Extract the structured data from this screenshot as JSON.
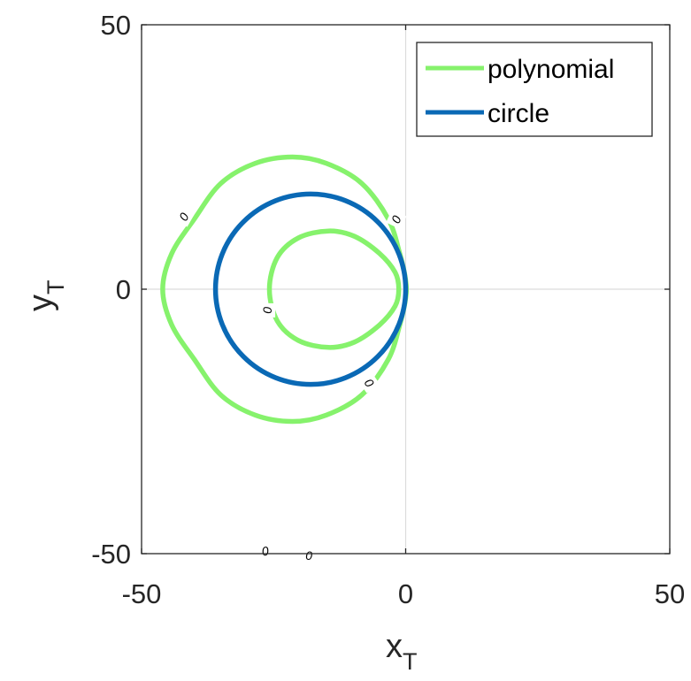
{
  "chart_data": {
    "type": "line",
    "title": "",
    "xlabel": {
      "main": "x",
      "sub": "T"
    },
    "ylabel": {
      "main": "y",
      "sub": "T"
    },
    "xlim": [
      -50,
      50
    ],
    "ylim": [
      -50,
      50
    ],
    "xticks": [
      "-50",
      "0",
      "50"
    ],
    "yticks": [
      "50",
      "0",
      "-50"
    ],
    "xtick_values": [
      -50,
      0,
      50
    ],
    "ytick_values": [
      50,
      0,
      -50
    ],
    "grid": "zero-lines",
    "legend_position": "top-right",
    "series": [
      {
        "name": "polynomial",
        "color": "#86f26c",
        "curves": [
          {
            "shape": "outer-loop",
            "x": [
              -21.4,
              -15.0,
              -8.3,
              -3.3,
              -1.1,
              0.0,
              0.0,
              -1.1,
              -3.3,
              -8.3,
              -15.0,
              -21.4,
              -28.5,
              -35.0,
              -40.0,
              -44.3,
              -46.0,
              -44.3,
              -40.0,
              -35.0,
              -28.5,
              -21.4
            ],
            "y": [
              25.0,
              23.8,
              20.0,
              13.3,
              6.7,
              1.7,
              -1.7,
              -6.7,
              -13.3,
              -20.0,
              -23.8,
              -25.0,
              -23.8,
              -20.0,
              -13.3,
              -6.7,
              0.0,
              6.7,
              13.3,
              20.0,
              23.8,
              25.0
            ]
          },
          {
            "shape": "inner-loop",
            "x": [
              -14.6,
              -9.7,
              -5.0,
              -2.0,
              -1.3,
              -2.0,
              -5.0,
              -9.7,
              -14.6,
              -20.3,
              -24.3,
              -25.8,
              -24.3,
              -20.3,
              -14.6
            ],
            "y": [
              11.0,
              10.0,
              6.8,
              3.2,
              0.0,
              -3.2,
              -6.8,
              -10.0,
              -11.0,
              -9.7,
              -6.0,
              0.0,
              6.0,
              9.7,
              11.0
            ]
          }
        ]
      },
      {
        "name": "circle",
        "color": "#0a69b5",
        "center": [
          -18.0,
          0.0
        ],
        "radius": 18.0
      }
    ],
    "contour_labels": [
      {
        "text": "0",
        "x": -42.0,
        "y": 13.7,
        "angle": -60
      },
      {
        "text": "0",
        "x": -1.8,
        "y": 13.2,
        "angle": -65
      },
      {
        "text": "0",
        "x": -26.2,
        "y": -4.0,
        "angle": -90
      },
      {
        "text": "0",
        "x": -6.9,
        "y": -17.7,
        "angle": 55
      },
      {
        "text": "0",
        "x": -26.6,
        "y": -49.5,
        "angle": -10
      },
      {
        "text": "0",
        "x": -18.3,
        "y": -50.3,
        "angle": 0
      }
    ]
  }
}
